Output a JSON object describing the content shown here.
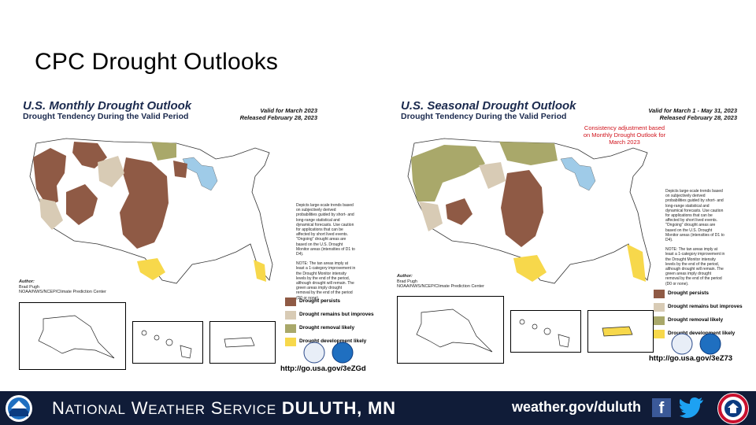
{
  "slide": {
    "title": "CPC Drought Outlooks"
  },
  "colors": {
    "persists": "#8f5a45",
    "improves": "#d8cbb5",
    "removal": "#a9a86a",
    "development": "#f7d84b",
    "footer_bg": "#101c38",
    "note_red": "#d0121b"
  },
  "monthly": {
    "title": "U.S. Monthly Drought Outlook",
    "subtitle": "Drought Tendency During the Valid Period",
    "valid": "Valid for March 2023",
    "released": "Released February 28, 2023",
    "notes": [
      "Depicts large-scale trends based on subjectively derived probabilities guided by short- and long-range statistical and dynamical forecasts. Use caution for applications that can be affected by short lived events. \"Ongoing\" drought areas are based on the U.S. Drought Monitor areas (intensities of D1 to D4).",
      "NOTE: The tan areas imply at least a 1-category improvement in the Drought Monitor intensity levels by the end of the period, although drought will remain. The green areas imply drought removal by the end of the period (D0 or none)."
    ],
    "author_label": "Author:",
    "author_name": "Brad Pugh",
    "author_org": "NOAA/NWS/NCEP/Climate Prediction Center",
    "url": "http://go.usa.gov/3eZGd"
  },
  "seasonal": {
    "title": "U.S. Seasonal Drought Outlook",
    "subtitle": "Drought Tendency During the Valid Period",
    "valid": "Valid for March 1 - May 31, 2023",
    "released": "Released February 28, 2023",
    "consistency_note": "Consistency adjustment based on Monthly Drought Outlook for March 2023",
    "notes": [
      "Depicts large-scale trends based on subjectively derived probabilities guided by short- and long-range statistical and dynamical forecasts. Use caution for applications that can be affected by short lived events. \"Ongoing\" drought areas are based on the U.S. Drought Monitor areas (intensities of D1 to D4).",
      "NOTE: The tan areas imply at least a 1-category improvement in the Drought Monitor intensity levels by the end of the period, although drought will remain. The green areas imply drought removal by the end of the period (D0 or none)."
    ],
    "author_label": "Author:",
    "author_name": "Brad Pugh",
    "author_org": "NOAA/NWS/NCEP/Climate Prediction Center",
    "url": "http://go.usa.gov/3eZ73"
  },
  "legend": {
    "persists": "Drought persists",
    "improves": "Drought remains but improves",
    "removal": "Drought removal likely",
    "development": "Drought development likely"
  },
  "footer": {
    "nws_n": "N",
    "nws_ational": "ATIONAL",
    "nws_w": "W",
    "nws_eather": "EATHER",
    "nws_s": "S",
    "nws_ervice": "ERVICE",
    "office": "DULUTH, MN",
    "website": "weather.gov/duluth",
    "facebook_glyph": "f",
    "icons": [
      "noaa-logo-icon",
      "facebook-icon",
      "twitter-icon",
      "weather-ready-nation-icon"
    ]
  }
}
